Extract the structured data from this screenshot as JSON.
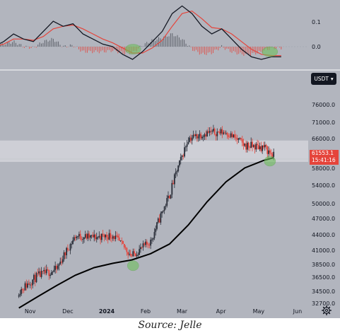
{
  "chart_data": [
    {
      "type": "line",
      "title": "",
      "y_ticks": [
        "0.1",
        "0.0"
      ],
      "ylim": [
        -0.1,
        0.2
      ],
      "series": [
        {
          "role": "macd-line",
          "color": "#131722",
          "values": [
            0.0,
            0.02,
            0.05,
            0.03,
            0.02,
            0.06,
            0.1,
            0.08,
            0.09,
            0.05,
            0.03,
            0.01,
            0.0,
            -0.03,
            -0.05,
            -0.02,
            0.02,
            0.06,
            0.13,
            0.16,
            0.13,
            0.08,
            0.05,
            0.07,
            0.03,
            -0.01,
            -0.04,
            -0.05,
            -0.04,
            -0.04
          ]
        },
        {
          "role": "signal-line",
          "color": "#e5443b",
          "values": [
            0.0,
            0.01,
            0.03,
            0.03,
            0.025,
            0.04,
            0.07,
            0.08,
            0.085,
            0.07,
            0.05,
            0.03,
            0.015,
            -0.005,
            -0.025,
            -0.025,
            -0.005,
            0.025,
            0.08,
            0.13,
            0.14,
            0.11,
            0.075,
            0.07,
            0.05,
            0.02,
            -0.01,
            -0.03,
            -0.035,
            -0.035
          ]
        }
      ]
    },
    {
      "type": "candlestick",
      "title": "",
      "currency": "USDT",
      "y_ticks": [
        "76000.0",
        "71000.0",
        "66000.0",
        "62000.0",
        "58000.0",
        "54000.0",
        "50000.0",
        "47000.0",
        "44000.0",
        "41000.0",
        "38500.0",
        "36500.0",
        "34500.0",
        "32700.0"
      ],
      "x_ticks": [
        "Nov",
        "Dec",
        "2024",
        "Feb",
        "Mar",
        "Apr",
        "May",
        "Jun"
      ],
      "ylim": [
        31500,
        79000
      ],
      "dates": [
        "2023-10-23",
        "2023-11-07",
        "2023-11-22",
        "2023-12-07",
        "2023-12-22",
        "2024-01-06",
        "2024-01-21",
        "2024-02-05",
        "2024-02-20",
        "2024-03-06",
        "2024-03-21",
        "2024-04-05",
        "2024-04-20",
        "2024-05-05",
        "2024-05-13"
      ],
      "close_prices": [
        34500,
        36700,
        37700,
        43700,
        43500,
        43900,
        40000,
        42700,
        51800,
        66100,
        67800,
        68000,
        64200,
        63800,
        61553
      ],
      "moving_average": [
        32000,
        33700,
        35300,
        36800,
        38000,
        38700,
        39300,
        40400,
        42200,
        45800,
        50400,
        54800,
        58100,
        60200,
        61000
      ],
      "current_price": {
        "value": "61553.1",
        "countdown": "15:41:16"
      },
      "highlight_band": [
        59800,
        65500
      ],
      "highlights": [
        {
          "panel": "oscillator",
          "date": "2024-01-22",
          "value": -0.01
        },
        {
          "panel": "oscillator",
          "date": "2024-05-10",
          "value": -0.02
        },
        {
          "panel": "price",
          "date": "2024-01-22",
          "value": 38300
        },
        {
          "panel": "price",
          "date": "2024-05-10",
          "value": 60000
        }
      ]
    }
  ],
  "source": "Source: Jelle"
}
